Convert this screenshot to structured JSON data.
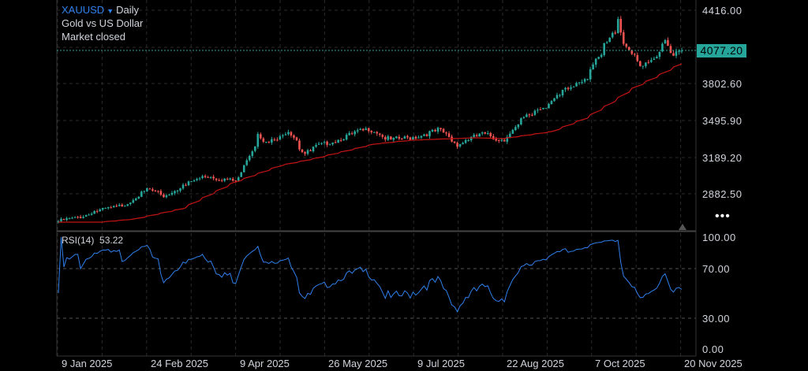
{
  "header": {
    "symbol": "XAUUSD",
    "dropdown_icon": "caret-down-icon",
    "interval": "Daily",
    "description": "Gold vs US Dollar",
    "status": "Market closed"
  },
  "rsi_header": {
    "label": "RSI(14)",
    "value": "53.22"
  },
  "more_icon": "more-dots-icon",
  "colors": {
    "background": "#000000",
    "up": "#26a69a",
    "down": "#ef5350",
    "ma": "#c41414",
    "rsi": "#2f80ed",
    "last_price": "#26a69a"
  },
  "chart_data": [
    {
      "type": "candlestick",
      "title": "XAUUSD Daily",
      "last_price": 4077.2,
      "last_price_label": "4077.20",
      "y_ticks": [
        "4416.00",
        "3802.60",
        "3495.90",
        "3189.20",
        "2882.50"
      ],
      "ylim": [
        2620,
        4500
      ],
      "grid": true,
      "x_ticks": [
        "9 Jan 2025",
        "24 Feb 2025",
        "9 Apr 2025",
        "26 May 2025",
        "9 Jul 2025",
        "22 Aug 2025",
        "7 Oct 2025",
        "20 Nov 2025"
      ],
      "close_keypoints": [
        [
          "2025-01-09",
          2649
        ],
        [
          "2025-01-20",
          2681
        ],
        [
          "2025-01-28",
          2734
        ],
        [
          "2025-02-10",
          2774
        ],
        [
          "2025-02-24",
          2919
        ],
        [
          "2025-03-03",
          2853
        ],
        [
          "2025-03-13",
          2939
        ],
        [
          "2025-03-24",
          3031
        ],
        [
          "2025-04-09",
          2985
        ],
        [
          "2025-04-14",
          3136
        ],
        [
          "2025-04-21",
          3400
        ],
        [
          "2025-04-24",
          3301
        ],
        [
          "2025-04-30",
          3330
        ],
        [
          "2025-05-06",
          3413
        ],
        [
          "2025-05-14",
          3216
        ],
        [
          "2025-05-21",
          3280
        ],
        [
          "2025-06-04",
          3361
        ],
        [
          "2025-06-16",
          3427
        ],
        [
          "2025-06-26",
          3328
        ],
        [
          "2025-07-07",
          3350
        ],
        [
          "2025-07-21",
          3413
        ],
        [
          "2025-07-30",
          3295
        ],
        [
          "2025-08-11",
          3380
        ],
        [
          "2025-08-22",
          3328
        ],
        [
          "2025-09-03",
          3526
        ],
        [
          "2025-09-08",
          3578
        ],
        [
          "2025-09-16",
          3657
        ],
        [
          "2025-09-24",
          3756
        ],
        [
          "2025-10-03",
          3862
        ],
        [
          "2025-10-09",
          4007
        ],
        [
          "2025-10-15",
          4172
        ],
        [
          "2025-10-20",
          4357
        ],
        [
          "2025-10-22",
          4139
        ],
        [
          "2025-10-27",
          4053
        ],
        [
          "2025-10-30",
          3941
        ],
        [
          "2025-11-04",
          3960
        ],
        [
          "2025-11-10",
          4093
        ],
        [
          "2025-11-12",
          4185
        ],
        [
          "2025-11-14",
          4073
        ],
        [
          "2025-11-18",
          4050
        ],
        [
          "2025-11-20",
          4077.2
        ]
      ],
      "moving_average_keypoints": [
        [
          "2025-01-09",
          2642
        ],
        [
          "2025-01-31",
          2642
        ],
        [
          "2025-02-17",
          2668
        ],
        [
          "2025-03-13",
          2754
        ],
        [
          "2025-04-08",
          2972
        ],
        [
          "2025-05-02",
          3117
        ],
        [
          "2025-05-18",
          3170
        ],
        [
          "2025-06-18",
          3295
        ],
        [
          "2025-07-07",
          3328
        ],
        [
          "2025-08-08",
          3348
        ],
        [
          "2025-08-22",
          3341
        ],
        [
          "2025-09-08",
          3381
        ],
        [
          "2025-09-16",
          3400
        ],
        [
          "2025-10-03",
          3512
        ],
        [
          "2025-10-15",
          3631
        ],
        [
          "2025-10-27",
          3763
        ],
        [
          "2025-11-08",
          3862
        ],
        [
          "2025-11-20",
          3967
        ]
      ]
    },
    {
      "type": "line",
      "title": "RSI(14)",
      "y_ticks": [
        "100.00",
        "70.00",
        "30.00",
        "0.00"
      ],
      "ylim": [
        0,
        100
      ],
      "levels": [
        70,
        30
      ],
      "last_value": 53.22
    }
  ]
}
